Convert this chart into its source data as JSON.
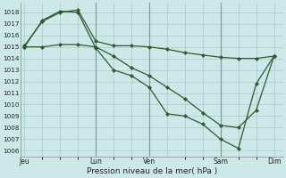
{
  "background_color": "#cce8e8",
  "grid_color": "#aacccc",
  "line_color": "#2d5a2d",
  "xlabel": "Pression niveau de la mer( hPa )",
  "ylim": [
    1005.5,
    1018.8
  ],
  "yticks": [
    1006,
    1007,
    1008,
    1009,
    1010,
    1011,
    1012,
    1013,
    1014,
    1015,
    1016,
    1017,
    1018
  ],
  "xtick_positions": [
    0,
    4,
    7,
    8,
    11,
    14
  ],
  "xtick_labels": [
    "Jeu",
    "Lun",
    "Ven",
    "",
    "Sam",
    "Dim"
  ],
  "vlines": [
    4,
    7,
    11
  ],
  "line1_x": [
    0,
    1,
    2,
    3,
    4,
    5,
    6,
    7,
    8,
    9,
    10,
    11,
    12,
    13,
    14
  ],
  "line1_y": [
    1015.1,
    1017.2,
    1018.0,
    1018.2,
    1015.5,
    1015.1,
    1015.1,
    1015.0,
    1014.8,
    1014.5,
    1014.3,
    1014.1,
    1014.0,
    1014.0,
    1014.2
  ],
  "line2_x": [
    0,
    1,
    2,
    3,
    4,
    5,
    6,
    7,
    8,
    9,
    10,
    11,
    12,
    13,
    14
  ],
  "line2_y": [
    1015.0,
    1017.3,
    1018.1,
    1018.0,
    1014.9,
    1013.0,
    1012.5,
    1011.5,
    1009.2,
    1009.0,
    1008.3,
    1007.0,
    1006.2,
    1011.8,
    1014.2
  ],
  "line3_x": [
    0,
    1,
    2,
    3,
    4,
    5,
    6,
    7,
    8,
    9,
    10,
    11,
    12,
    13,
    14
  ],
  "line3_y": [
    1015.0,
    1015.0,
    1015.2,
    1015.2,
    1015.0,
    1014.2,
    1013.2,
    1012.5,
    1011.5,
    1010.5,
    1009.3,
    1008.2,
    1008.0,
    1009.5,
    1014.2
  ]
}
